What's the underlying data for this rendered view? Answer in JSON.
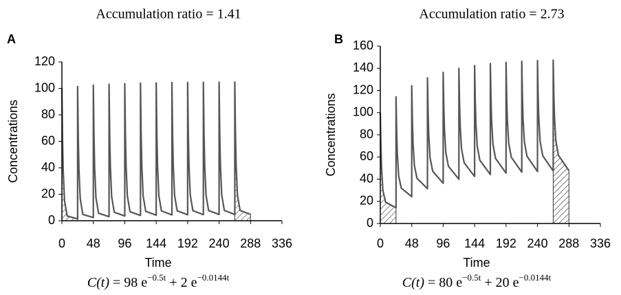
{
  "chart_data": [
    {
      "type": "line",
      "panel_label": "A",
      "title": "Accumulation ratio = 1.41",
      "xlabel": "Time",
      "ylabel": "Concentrations",
      "formula": [
        "C(t)",
        " = 98 e",
        "−0.5t",
        " + 2 e",
        "−0.0144t"
      ],
      "xlim": [
        0,
        336
      ],
      "xticks": [
        0,
        48,
        96,
        144,
        192,
        240,
        288,
        336
      ],
      "ylim": [
        0,
        120
      ],
      "yticks": [
        0,
        20,
        40,
        60,
        80,
        100,
        120
      ],
      "color": "#555555",
      "shaded": [
        [
          0,
          24
        ],
        [
          264,
          288
        ]
      ],
      "x": [
        0,
        1,
        2,
        4,
        8,
        24,
        24,
        25,
        26,
        28,
        32,
        48,
        48,
        49,
        50,
        52,
        56,
        72,
        72,
        73,
        74,
        76,
        80,
        96,
        96,
        97,
        98,
        100,
        104,
        120,
        120,
        121,
        122,
        124,
        128,
        144,
        144,
        145,
        146,
        148,
        152,
        168,
        168,
        169,
        170,
        172,
        176,
        192,
        192,
        193,
        194,
        196,
        200,
        216,
        216,
        217,
        218,
        220,
        224,
        240,
        240,
        241,
        242,
        244,
        248,
        264,
        264,
        265,
        266,
        268,
        272,
        288
      ],
      "values": [
        100,
        61.4,
        38.0,
        15.1,
        3.6,
        1.4,
        101.4,
        62.8,
        39.4,
        16.5,
        4.8,
        2.4,
        102.4,
        63.8,
        40.3,
        17.4,
        5.7,
        3.1,
        103.1,
        64.5,
        41.0,
        18.1,
        6.4,
        3.6,
        103.6,
        65.0,
        41.5,
        18.6,
        6.8,
        4.0,
        104.0,
        65.3,
        41.9,
        18.9,
        7.1,
        4.2,
        104.2,
        65.5,
        42.1,
        19.1,
        7.4,
        4.4,
        104.4,
        65.7,
        42.3,
        19.3,
        7.5,
        4.5,
        104.5,
        65.9,
        42.4,
        19.4,
        7.6,
        4.6,
        104.6,
        65.9,
        42.5,
        19.5,
        7.7,
        4.7,
        104.7,
        66.0,
        42.6,
        19.6,
        7.8,
        4.7,
        104.7,
        66.0,
        42.6,
        19.6,
        7.8,
        4.8
      ]
    },
    {
      "type": "line",
      "panel_label": "B",
      "title": "Accumulation ratio = 2.73",
      "xlabel": "Time",
      "ylabel": "Concentrations",
      "formula": [
        "C(t)",
        " = 80 e",
        "−0.5t",
        " + 20 e",
        "−0.0144t"
      ],
      "xlim": [
        0,
        336
      ],
      "xticks": [
        0,
        48,
        96,
        144,
        192,
        240,
        288,
        336
      ],
      "ylim": [
        0,
        160
      ],
      "yticks": [
        0,
        20,
        40,
        60,
        80,
        100,
        120,
        140,
        160
      ],
      "color": "#555555",
      "shaded": [
        [
          0,
          24
        ],
        [
          264,
          288
        ]
      ],
      "x": [
        0,
        1,
        2,
        4,
        8,
        24,
        24,
        25,
        26,
        28,
        32,
        48,
        48,
        49,
        50,
        52,
        56,
        72,
        72,
        73,
        74,
        76,
        80,
        96,
        96,
        97,
        98,
        100,
        104,
        120,
        120,
        121,
        122,
        124,
        128,
        144,
        144,
        145,
        146,
        148,
        152,
        168,
        168,
        169,
        170,
        172,
        176,
        192,
        192,
        193,
        194,
        196,
        200,
        216,
        216,
        217,
        218,
        220,
        224,
        240,
        240,
        241,
        242,
        244,
        248,
        264,
        264,
        265,
        266,
        268,
        272,
        288
      ],
      "values": [
        100,
        68.2,
        48.9,
        29.7,
        19.3,
        14.2,
        114.2,
        82.2,
        62.6,
        43.1,
        31.9,
        24.2,
        124.2,
        92.1,
        72.4,
        52.5,
        40.8,
        31.3,
        131.3,
        99.1,
        79.3,
        59.2,
        47.2,
        36.3,
        136.3,
        104.0,
        84.1,
        64.0,
        51.6,
        39.9,
        139.9,
        107.5,
        87.6,
        67.3,
        54.8,
        42.4,
        142.4,
        110.0,
        90.0,
        69.7,
        57.0,
        44.2,
        144.2,
        111.8,
        91.8,
        71.4,
        58.6,
        45.4,
        145.4,
        113.0,
        93.0,
        72.6,
        59.8,
        46.3,
        146.3,
        113.9,
        93.9,
        73.4,
        60.6,
        46.9,
        147.0,
        114.5,
        94.5,
        74.0,
        61.1,
        47.4,
        147.4,
        115.0,
        94.9,
        74.5,
        61.5,
        47.7
      ]
    }
  ]
}
